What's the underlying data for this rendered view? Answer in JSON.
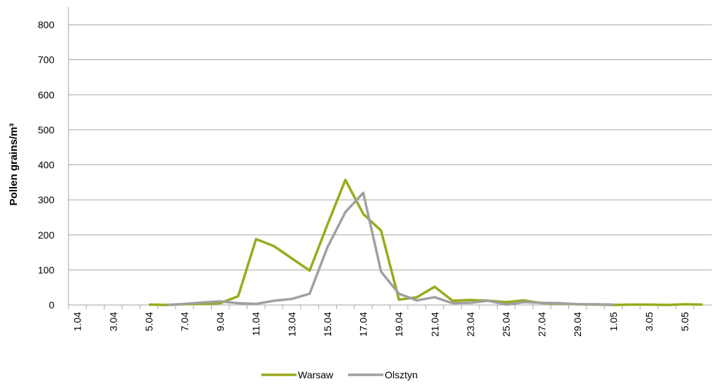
{
  "chart_data": {
    "type": "line",
    "y_label": "Pollen grains/m³",
    "categories": [
      "1.04",
      null,
      "3.04",
      null,
      "5.04",
      null,
      "7.04",
      null,
      "9.04",
      null,
      "11.04",
      null,
      "13.04",
      null,
      "15.04",
      null,
      "17.04",
      null,
      "19.04",
      null,
      "21.04",
      null,
      "23.04",
      null,
      "25.04",
      null,
      "27.04",
      null,
      "29.04",
      null,
      "1.05",
      null,
      "3.05",
      null,
      "5.05",
      null
    ],
    "series": [
      {
        "name": "Warsaw",
        "color": "#9aaa1e",
        "values": [
          null,
          null,
          null,
          null,
          1,
          0,
          2,
          3,
          5,
          25,
          188,
          168,
          133,
          98,
          230,
          357,
          260,
          212,
          15,
          22,
          52,
          12,
          14,
          12,
          8,
          13,
          5,
          4,
          2,
          1,
          0,
          1,
          1,
          0,
          2,
          1
        ]
      },
      {
        "name": "Olsztyn",
        "color": "#a0a0a0",
        "values": [
          null,
          null,
          null,
          null,
          null,
          0,
          3,
          7,
          10,
          5,
          3,
          12,
          17,
          32,
          165,
          265,
          320,
          95,
          32,
          13,
          22,
          5,
          6,
          12,
          1,
          8,
          6,
          5,
          2,
          2,
          1,
          null,
          null,
          null,
          null,
          null
        ]
      }
    ],
    "ylim": [
      0,
      800
    ],
    "yticks": [
      0,
      100,
      200,
      300,
      400,
      500,
      600,
      700,
      800
    ],
    "grid": true,
    "legend": "bottom"
  }
}
